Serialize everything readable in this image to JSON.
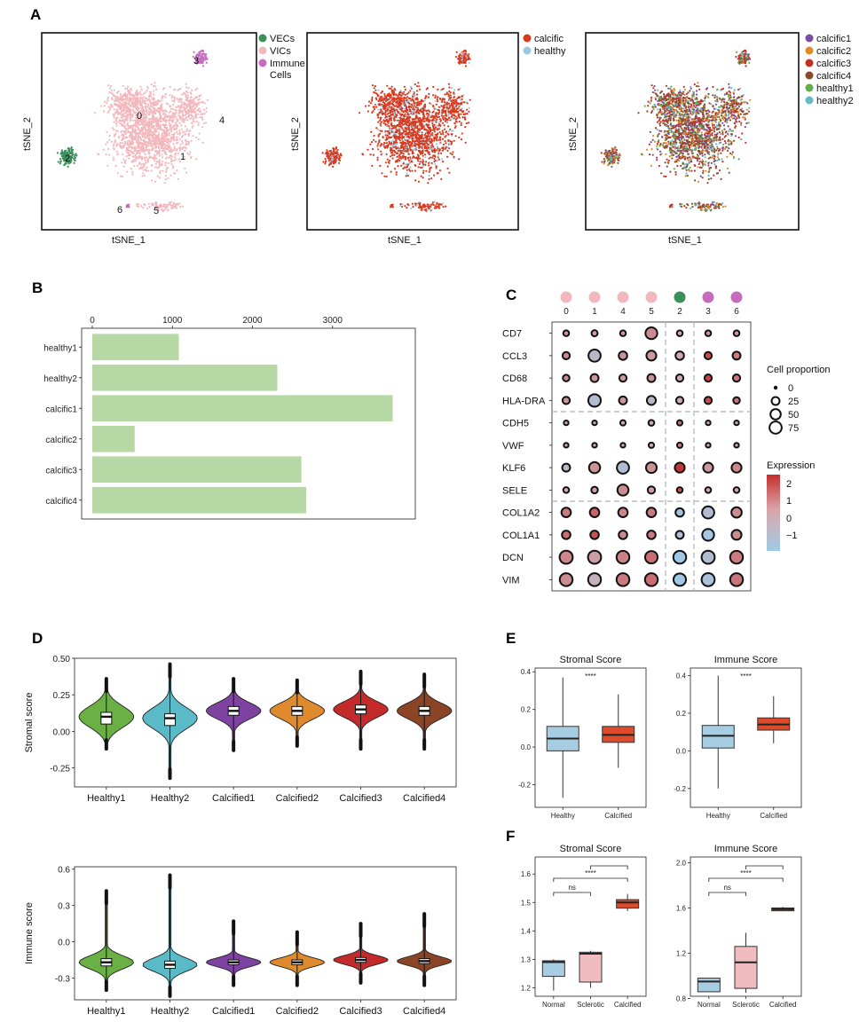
{
  "panels": {
    "A": {
      "letter": "A",
      "xlabel": "tSNE_1",
      "ylabel": "tSNE_2",
      "plot1": {
        "legend": [
          {
            "label": "VECs",
            "color": "#3b8f5a"
          },
          {
            "label": "VICs",
            "color": "#f2b8bd"
          },
          {
            "label": "Immune",
            "color": "#c56cc0"
          },
          {
            "label": "Cells",
            "color": ""
          }
        ],
        "cluster_labels": [
          "0",
          "1",
          "2",
          "3",
          "4",
          "5",
          "6"
        ]
      },
      "plot2": {
        "legend": [
          {
            "label": "calcific",
            "color": "#d83a1f"
          },
          {
            "label": "healthy",
            "color": "#9dc8e2"
          }
        ]
      },
      "plot3": {
        "legend": [
          {
            "label": "calcific1",
            "color": "#7f4aa6"
          },
          {
            "label": "calcific2",
            "color": "#e08a29"
          },
          {
            "label": "calcific3",
            "color": "#c23227"
          },
          {
            "label": "calcific4",
            "color": "#8a4a2a"
          },
          {
            "label": "healthy1",
            "color": "#63ad4a"
          },
          {
            "label": "healthy2",
            "color": "#63bccb"
          }
        ]
      }
    },
    "B": {
      "letter": "B",
      "chart_data": {
        "type": "bar",
        "orientation": "horizontal",
        "categories": [
          "healthy1",
          "healthy2",
          "calcific1",
          "calcific2",
          "calcific3",
          "calcific4"
        ],
        "values": [
          1080,
          2310,
          3750,
          530,
          2610,
          2670
        ],
        "xticks": [
          "0",
          "1000",
          "2000",
          "3000"
        ],
        "xlim": [
          0,
          3900
        ],
        "bar_color": "#b5d8a4"
      }
    },
    "C": {
      "letter": "C",
      "chart_data": {
        "type": "dot",
        "clusters": [
          "0",
          "1",
          "4",
          "5",
          "2",
          "3",
          "6"
        ],
        "cluster_colors": [
          "#f2b8bd",
          "#f2b8bd",
          "#f2b8bd",
          "#f2b8bd",
          "#3b8f5a",
          "#c56cc0",
          "#c56cc0"
        ],
        "genes": [
          "CD7",
          "CCL3",
          "CD68",
          "HLA-DRA",
          "CDH5",
          "VWF",
          "KLF6",
          "SELE",
          "COL1A2",
          "COL1A1",
          "DCN",
          "VIM"
        ],
        "proportion": [
          [
            10,
            12,
            10,
            70,
            10,
            10,
            10
          ],
          [
            20,
            75,
            30,
            45,
            30,
            20,
            25
          ],
          [
            15,
            25,
            20,
            25,
            20,
            20,
            20
          ],
          [
            20,
            80,
            25,
            35,
            20,
            20,
            15
          ],
          [
            5,
            5,
            8,
            10,
            8,
            5,
            5
          ],
          [
            5,
            5,
            5,
            8,
            8,
            5,
            5
          ],
          [
            25,
            60,
            75,
            55,
            45,
            45,
            45
          ],
          [
            10,
            15,
            60,
            20,
            10,
            10,
            10
          ],
          [
            40,
            40,
            40,
            40,
            30,
            75,
            50
          ],
          [
            30,
            30,
            30,
            30,
            25,
            70,
            45
          ],
          [
            90,
            90,
            85,
            80,
            85,
            90,
            85
          ],
          [
            85,
            85,
            85,
            85,
            80,
            90,
            85
          ]
        ],
        "expression": [
          [
            0.3,
            0.2,
            0.3,
            0.5,
            0.0,
            0.4,
            0.3
          ],
          [
            0.6,
            -0.6,
            0.4,
            0.3,
            0.0,
            1.6,
            0.8
          ],
          [
            0.5,
            0.3,
            0.3,
            0.4,
            0.0,
            1.8,
            0.9
          ],
          [
            0.4,
            -0.8,
            0.3,
            -0.5,
            0.0,
            1.6,
            0.9
          ],
          [
            0.0,
            0.0,
            0.0,
            0.0,
            1.0,
            0.0,
            0.0
          ],
          [
            0.0,
            0.0,
            0.0,
            0.0,
            0.8,
            0.0,
            0.0
          ],
          [
            -0.5,
            0.4,
            -0.8,
            0.4,
            2.0,
            0.3,
            0.6
          ],
          [
            0.0,
            0.2,
            0.5,
            0.2,
            1.5,
            0.0,
            0.0
          ],
          [
            0.8,
            1.2,
            0.6,
            0.8,
            -1.0,
            -0.8,
            0.5
          ],
          [
            1.0,
            1.5,
            0.5,
            0.8,
            -0.8,
            -1.2,
            0.5
          ],
          [
            0.6,
            0.2,
            0.7,
            1.0,
            -1.3,
            -0.8,
            0.8
          ],
          [
            0.5,
            -0.3,
            0.8,
            1.0,
            -1.3,
            -1.0,
            0.9
          ]
        ],
        "size_legend_title": "Cell proportion",
        "size_legend": [
          "0",
          "25",
          "50",
          "75"
        ],
        "color_legend_title": "Expression",
        "color_legend_ticks": [
          "2",
          "1",
          "0",
          "−1"
        ]
      }
    },
    "D": {
      "letter": "D",
      "chart_data": [
        {
          "type": "violin",
          "ylabel": "Stromal score",
          "categories": [
            "Healthy1",
            "Healthy2",
            "Calcified1",
            "Calcified2",
            "Calcified3",
            "Calcified4"
          ],
          "colors": [
            "#6ab045",
            "#5bbac8",
            "#7e43a1",
            "#e08a2e",
            "#c42a2a",
            "#8b4526"
          ],
          "medians": [
            0.1,
            0.09,
            0.14,
            0.14,
            0.15,
            0.14
          ],
          "q1": [
            0.05,
            0.04,
            0.11,
            0.11,
            0.12,
            0.11
          ],
          "q3": [
            0.13,
            0.12,
            0.17,
            0.17,
            0.18,
            0.17
          ],
          "min": [
            -0.12,
            -0.32,
            -0.13,
            -0.1,
            -0.12,
            -0.12
          ],
          "max": [
            0.36,
            0.46,
            0.36,
            0.35,
            0.41,
            0.39
          ],
          "yticks": [
            "0.50",
            "0.25",
            "0.00",
            "-0.25"
          ],
          "ylim": [
            -0.38,
            0.5
          ]
        },
        {
          "type": "violin",
          "ylabel": "Immune score",
          "categories": [
            "Healthy1",
            "Healthy2",
            "Calcified1",
            "Calcified2",
            "Calcified3",
            "Calcified4"
          ],
          "colors": [
            "#6ab045",
            "#5bbac8",
            "#7e43a1",
            "#e08a2e",
            "#c42a2a",
            "#8b4526"
          ],
          "medians": [
            -0.17,
            -0.19,
            -0.17,
            -0.17,
            -0.15,
            -0.16
          ],
          "q1": [
            -0.2,
            -0.22,
            -0.19,
            -0.19,
            -0.17,
            -0.18
          ],
          "q3": [
            -0.14,
            -0.16,
            -0.15,
            -0.15,
            -0.13,
            -0.14
          ],
          "min": [
            -0.4,
            -0.45,
            -0.36,
            -0.36,
            -0.34,
            -0.36
          ],
          "max": [
            0.42,
            0.55,
            0.17,
            0.08,
            0.15,
            0.23
          ],
          "yticks": [
            "0.6",
            "0.3",
            "0.0",
            "-0.3"
          ],
          "ylim": [
            -0.48,
            0.62
          ]
        }
      ]
    },
    "E": {
      "letter": "E",
      "chart_data": [
        {
          "type": "box",
          "title": "Stromal Score",
          "categories": [
            "Healthy",
            "Calcified"
          ],
          "colors": [
            "#a6cde2",
            "#db4b2c"
          ],
          "median": [
            0.045,
            0.065
          ],
          "q1": [
            -0.02,
            0.025
          ],
          "q3": [
            0.11,
            0.11
          ],
          "whisker_low": [
            -0.27,
            -0.11
          ],
          "whisker_high": [
            0.37,
            0.28
          ],
          "yticks": [
            "0.4",
            "0.2",
            "0.0",
            "-0.2"
          ],
          "ylim": [
            -0.32,
            0.42
          ],
          "sig": "****"
        },
        {
          "type": "box",
          "title": "Immune Score",
          "categories": [
            "Healthy",
            "Calcified"
          ],
          "colors": [
            "#a6cde2",
            "#db4b2c"
          ],
          "median": [
            0.08,
            0.14
          ],
          "q1": [
            0.015,
            0.11
          ],
          "q3": [
            0.135,
            0.175
          ],
          "whisker_low": [
            -0.2,
            0.04
          ],
          "whisker_high": [
            0.4,
            0.29
          ],
          "yticks": [
            "0.4",
            "0.2",
            "0.0",
            "-0.2"
          ],
          "ylim": [
            -0.3,
            0.44
          ],
          "sig": "****"
        }
      ]
    },
    "F": {
      "letter": "F",
      "chart_data": [
        {
          "type": "box",
          "title": "Stromal Score",
          "categories": [
            "Normal",
            "Sclerotic",
            "Calcified"
          ],
          "colors": [
            "#a6cde2",
            "#f0bcc0",
            "#db4b2c"
          ],
          "median": [
            1.29,
            1.32,
            1.5
          ],
          "q1": [
            1.24,
            1.22,
            1.48
          ],
          "q3": [
            1.295,
            1.325,
            1.51
          ],
          "whisker_low": [
            1.19,
            1.2,
            1.47
          ],
          "whisker_high": [
            1.3,
            1.33,
            1.53
          ],
          "yticks": [
            "1.6",
            "1.5",
            "1.4",
            "1.3",
            "1.2"
          ],
          "ylim": [
            1.17,
            1.66
          ],
          "comparisons": [
            {
              "from": 0,
              "to": 1,
              "label": "ns"
            },
            {
              "from": 0,
              "to": 2,
              "label": "****"
            },
            {
              "from": 1,
              "to": 2,
              "label": ""
            }
          ]
        },
        {
          "type": "box",
          "title": "Immune Score",
          "categories": [
            "Normal",
            "Sclerotic",
            "Calcified"
          ],
          "colors": [
            "#a6cde2",
            "#f0bcc0",
            "#db4b2c"
          ],
          "median": [
            0.95,
            1.12,
            1.59
          ],
          "q1": [
            0.86,
            0.89,
            1.575
          ],
          "q3": [
            0.98,
            1.26,
            1.6
          ],
          "whisker_low": [
            0.86,
            0.85,
            1.57
          ],
          "whisker_high": [
            0.98,
            1.38,
            1.61
          ],
          "yticks": [
            "2.0",
            "1.6",
            "1.2",
            "0.8"
          ],
          "ylim": [
            0.82,
            2.05
          ],
          "comparisons": [
            {
              "from": 0,
              "to": 1,
              "label": "ns"
            },
            {
              "from": 0,
              "to": 2,
              "label": "****"
            },
            {
              "from": 1,
              "to": 2,
              "label": ""
            }
          ]
        }
      ]
    }
  }
}
